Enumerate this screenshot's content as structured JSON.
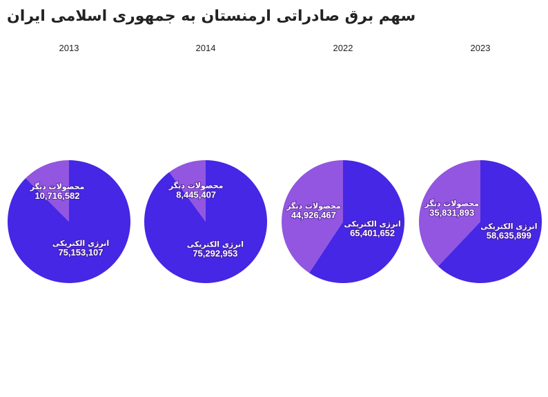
{
  "title": "سهم برق صادراتی ارمنستان به جمهوری اسلامی ایران",
  "chart_data": [
    {
      "type": "pie",
      "title": "2013",
      "categories": [
        "انرژی الکتریکی",
        "محصولات دیگر"
      ],
      "values": [
        75153107,
        10716582
      ],
      "value_labels": [
        "75,153,107",
        "10,716,582"
      ],
      "colors": [
        "#4527e5",
        "#9256e0"
      ]
    },
    {
      "type": "pie",
      "title": "2014",
      "categories": [
        "انرژی الکتریکی",
        "محصولات دیگر"
      ],
      "values": [
        75292953,
        8445407
      ],
      "value_labels": [
        "75,292,953",
        "8,445,407"
      ],
      "colors": [
        "#4527e5",
        "#9256e0"
      ]
    },
    {
      "type": "pie",
      "title": "2022",
      "categories": [
        "انرژی الکتریکی",
        "محصولات دیگر"
      ],
      "values": [
        65401652,
        44926467
      ],
      "value_labels": [
        "65,401,652",
        "44,926,467"
      ],
      "colors": [
        "#4527e5",
        "#9256e0"
      ]
    },
    {
      "type": "pie",
      "title": "2023",
      "categories": [
        "انرژی الکتریکی",
        "محصولات دیگر"
      ],
      "values": [
        58635899,
        35831893
      ],
      "value_labels": [
        "58,635,899",
        "35,831,893"
      ],
      "colors": [
        "#4527e5",
        "#9256e0"
      ]
    }
  ]
}
